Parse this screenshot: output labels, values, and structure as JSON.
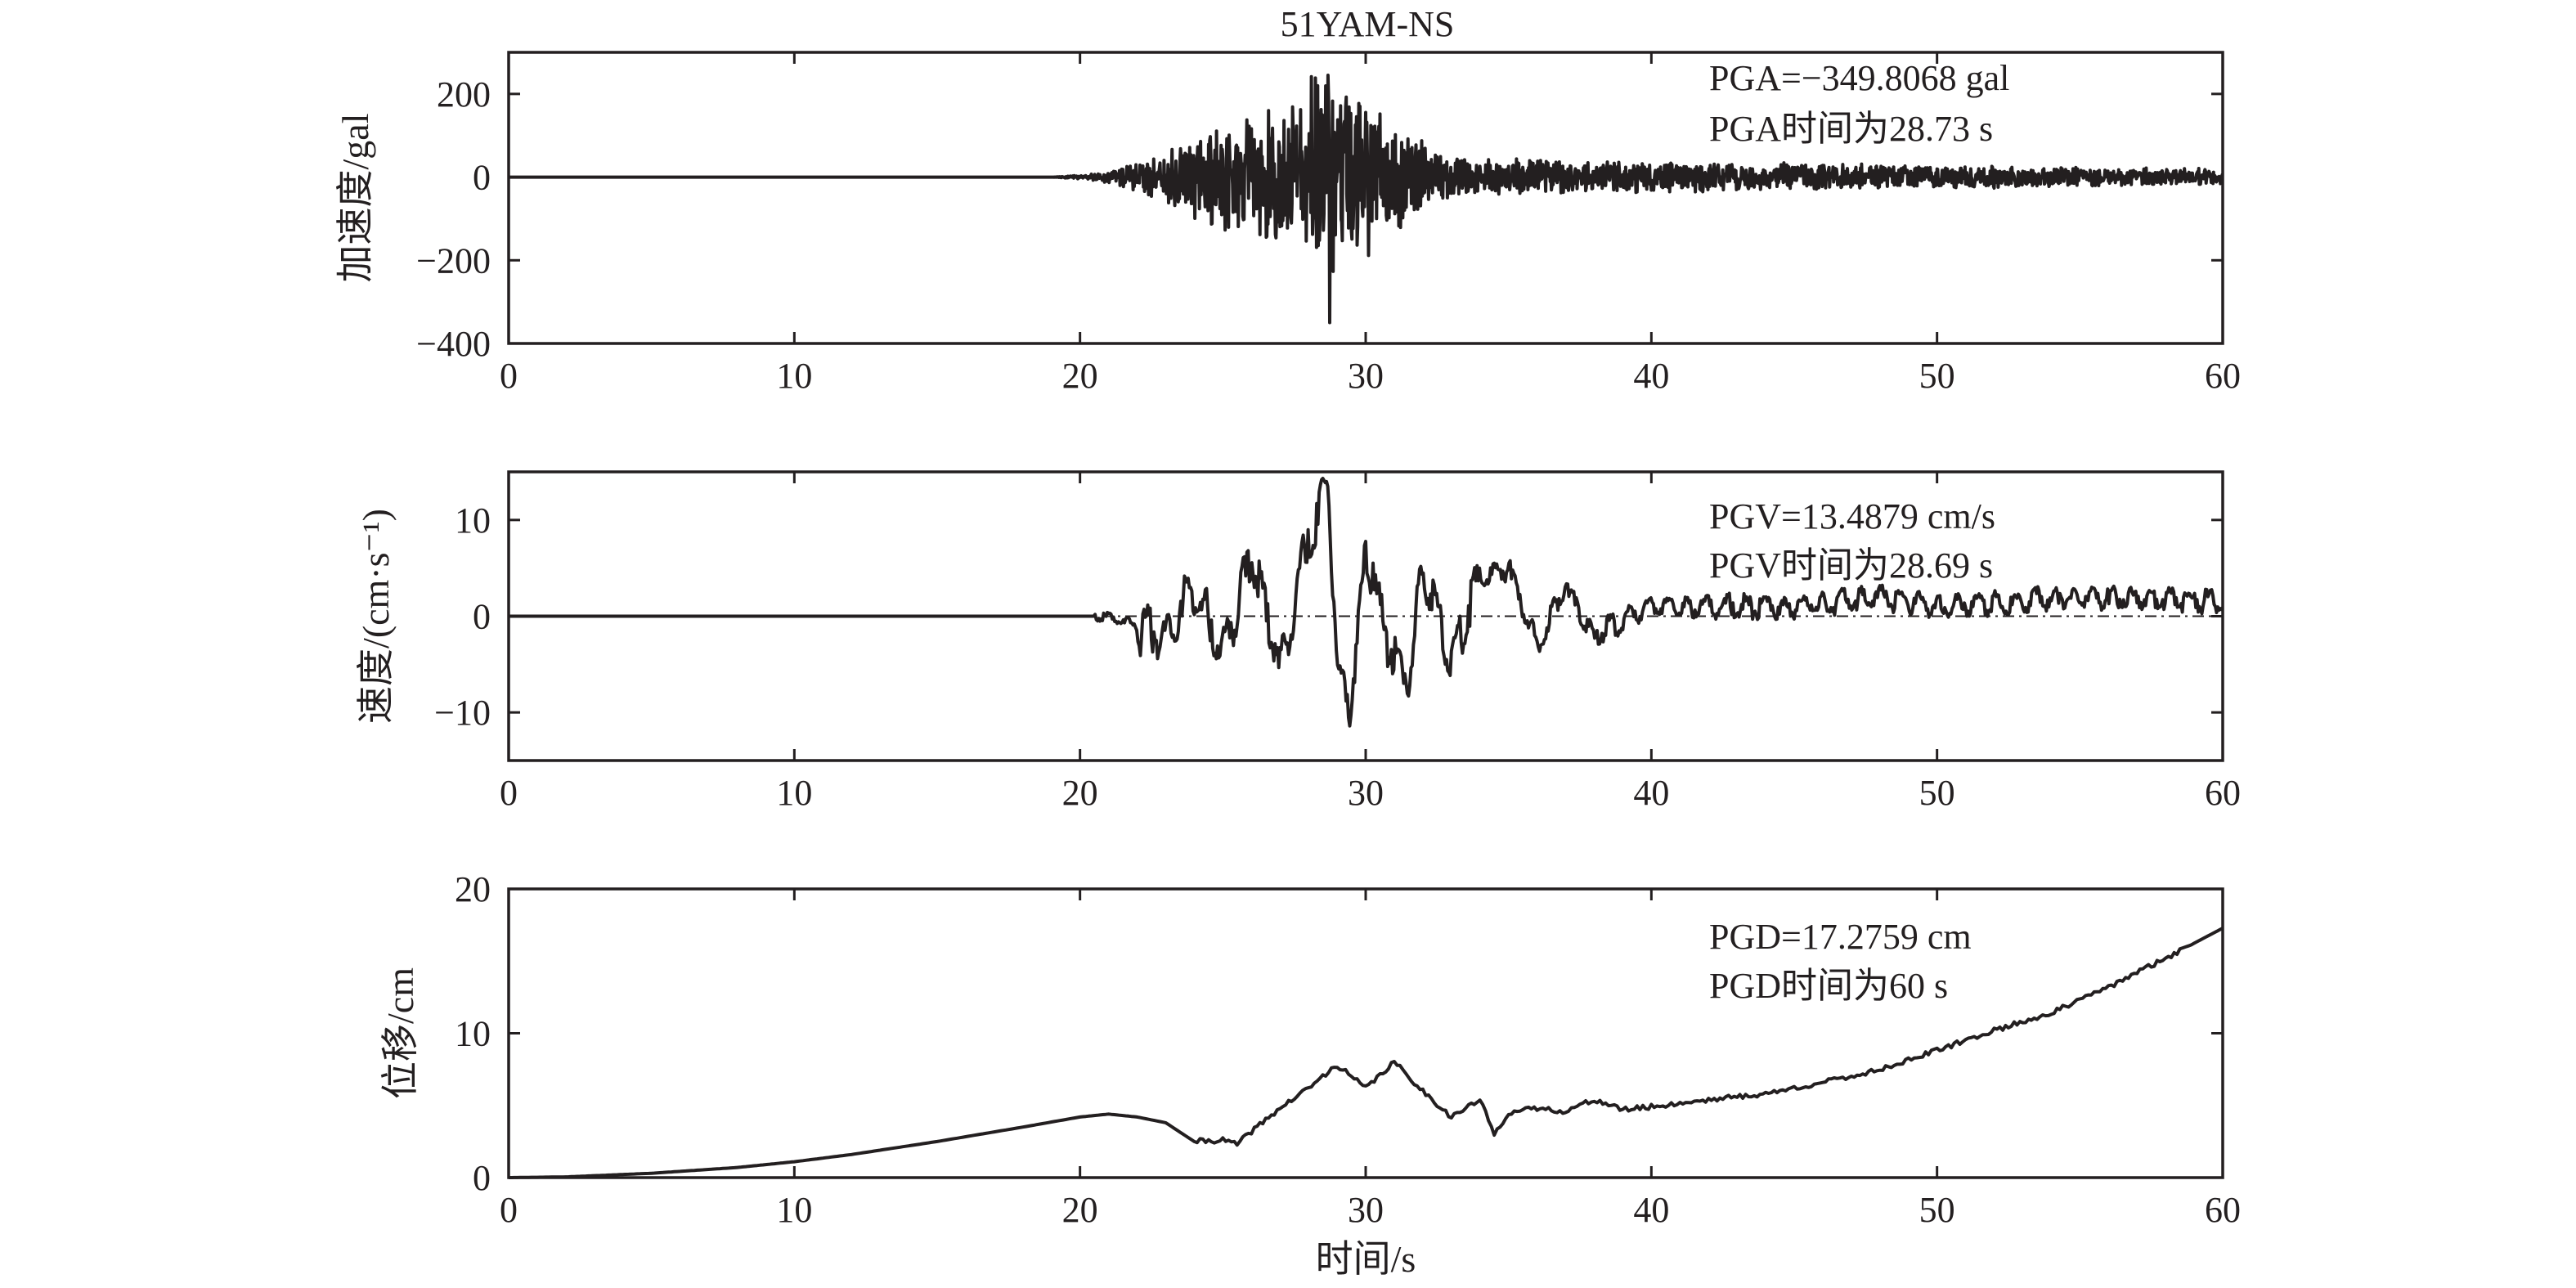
{
  "title": "51YAM-NS",
  "colors": {
    "ink": "#231f20",
    "background": "#ffffff"
  },
  "chart_data": [
    {
      "type": "line",
      "id": "acceleration",
      "title": "",
      "xlabel": "",
      "ylabel": "加速度/gal",
      "xlim": [
        0,
        60
      ],
      "ylim": [
        -400,
        300
      ],
      "xticks": [
        "0",
        "10",
        "20",
        "30",
        "40",
        "50",
        "60"
      ],
      "yticks": [
        "200",
        "0",
        "−200",
        "−400"
      ],
      "annotations": [
        "PGA=−349.8068 gal",
        "PGA时间为28.73 s"
      ],
      "peak": {
        "x": 28.73,
        "y": -349.8068
      },
      "series": [
        {
          "x": [
            0,
            19,
            20,
            21,
            22,
            23,
            24,
            25,
            26,
            27,
            28,
            28.73,
            29,
            30,
            31,
            32,
            33,
            35,
            40,
            45,
            50,
            55,
            60
          ],
          "y": [
            0,
            0,
            5,
            15,
            40,
            70,
            110,
            140,
            150,
            190,
            230,
            -349.8,
            240,
            200,
            140,
            90,
            60,
            45,
            40,
            35,
            30,
            25,
            20
          ],
          "envelope": [
            0,
            0,
            5,
            15,
            40,
            70,
            110,
            140,
            150,
            190,
            230,
            350,
            240,
            200,
            140,
            90,
            60,
            45,
            40,
            35,
            30,
            25,
            20
          ]
        }
      ],
      "grid": false
    },
    {
      "type": "line",
      "id": "velocity",
      "title": "",
      "xlabel": "",
      "ylabel": "速度/(cm·s⁻¹)",
      "xlim": [
        0,
        60
      ],
      "ylim": [
        -15,
        15
      ],
      "xticks": [
        "0",
        "10",
        "20",
        "30",
        "40",
        "50",
        "60"
      ],
      "yticks": [
        "10",
        "0",
        "−10"
      ],
      "annotations": [
        "PGV=13.4879 cm/s",
        "PGV时间为28.69 s"
      ],
      "peak": {
        "x": 28.69,
        "y": 13.4879
      },
      "series": [
        {
          "x": [
            0,
            20,
            21,
            22,
            23,
            24,
            25,
            26,
            27,
            28,
            28.69,
            29,
            29.5,
            30,
            31,
            31.5,
            32,
            33,
            34,
            35,
            36,
            37,
            38,
            40,
            42,
            45,
            48,
            50,
            55,
            60
          ],
          "y": [
            0,
            0,
            0,
            -1,
            -2,
            3,
            -4,
            6,
            -5,
            8,
            13.49,
            -6,
            -9,
            7,
            -5,
            -7,
            5,
            -5,
            4,
            5,
            -3,
            3,
            -2,
            1,
            1,
            1,
            2,
            1,
            2,
            1.5
          ]
        }
      ],
      "grid": false
    },
    {
      "type": "line",
      "id": "displacement",
      "title": "",
      "xlabel": "时间/s",
      "ylabel": "位移/cm",
      "xlim": [
        0,
        60
      ],
      "ylim": [
        0,
        20
      ],
      "xticks": [
        "0",
        "10",
        "20",
        "30",
        "40",
        "50",
        "60"
      ],
      "yticks": [
        "20",
        "10",
        "0"
      ],
      "annotations": [
        "PGD=17.2759 cm",
        "PGD时间为60 s"
      ],
      "peak": {
        "x": 60,
        "y": 17.2759
      },
      "series": [
        {
          "x": [
            0,
            2,
            5,
            8,
            10,
            12,
            15,
            18,
            20,
            21,
            22,
            23,
            24,
            25,
            25.5,
            26,
            27,
            28,
            29,
            29.5,
            30,
            31,
            32,
            33,
            34,
            34.5,
            35,
            36,
            37,
            38,
            39,
            40,
            42,
            44,
            45,
            46,
            47,
            48,
            50,
            52,
            54,
            56,
            58,
            60
          ],
          "y": [
            0,
            0.05,
            0.3,
            0.7,
            1.1,
            1.6,
            2.5,
            3.5,
            4.2,
            4.4,
            4.2,
            3.8,
            2.5,
            2.6,
            2.3,
            3.2,
            4.8,
            6.2,
            7.8,
            7.0,
            6.2,
            8.0,
            6.0,
            4.2,
            5.4,
            3.0,
            4.5,
            4.8,
            4.6,
            5.4,
            4.7,
            4.9,
            5.4,
            5.8,
            6.2,
            6.6,
            7.0,
            7.5,
            8.8,
            10.2,
            11.4,
            13.2,
            15.2,
            17.28
          ]
        }
      ],
      "grid": false
    }
  ]
}
